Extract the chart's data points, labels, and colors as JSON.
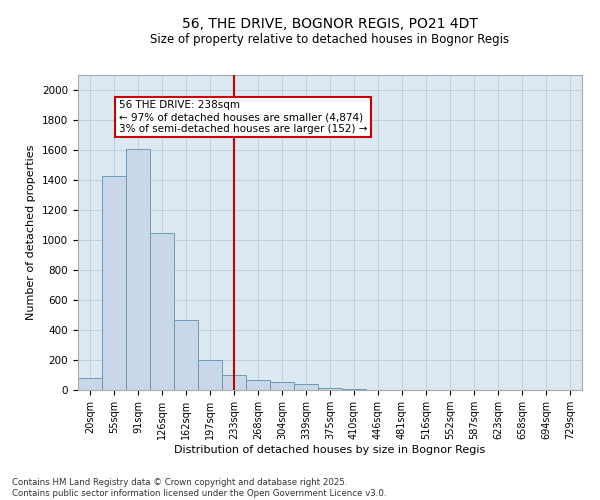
{
  "title1": "56, THE DRIVE, BOGNOR REGIS, PO21 4DT",
  "title2": "Size of property relative to detached houses in Bognor Regis",
  "xlabel": "Distribution of detached houses by size in Bognor Regis",
  "ylabel": "Number of detached properties",
  "categories": [
    "20sqm",
    "55sqm",
    "91sqm",
    "126sqm",
    "162sqm",
    "197sqm",
    "233sqm",
    "268sqm",
    "304sqm",
    "339sqm",
    "375sqm",
    "410sqm",
    "446sqm",
    "481sqm",
    "516sqm",
    "552sqm",
    "587sqm",
    "623sqm",
    "658sqm",
    "694sqm",
    "729sqm"
  ],
  "values": [
    80,
    1430,
    1610,
    1050,
    470,
    200,
    100,
    70,
    55,
    40,
    15,
    5,
    2,
    1,
    0,
    0,
    0,
    0,
    0,
    0,
    0
  ],
  "bar_color": "#c8d8e8",
  "bar_edge_color": "#6a9ab8",
  "vline_x_index": 6,
  "vline_color": "#cc0000",
  "annotation_text": "56 THE DRIVE: 238sqm\n← 97% of detached houses are smaller (4,874)\n3% of semi-detached houses are larger (152) →",
  "annotation_box_facecolor": "#ffffff",
  "annotation_box_edgecolor": "#cc0000",
  "ylim": [
    0,
    2100
  ],
  "yticks": [
    0,
    200,
    400,
    600,
    800,
    1000,
    1200,
    1400,
    1600,
    1800,
    2000
  ],
  "bg_color": "#dce8f2",
  "footer_line1": "Contains HM Land Registry data © Crown copyright and database right 2025.",
  "footer_line2": "Contains public sector information licensed under the Open Government Licence v3.0."
}
